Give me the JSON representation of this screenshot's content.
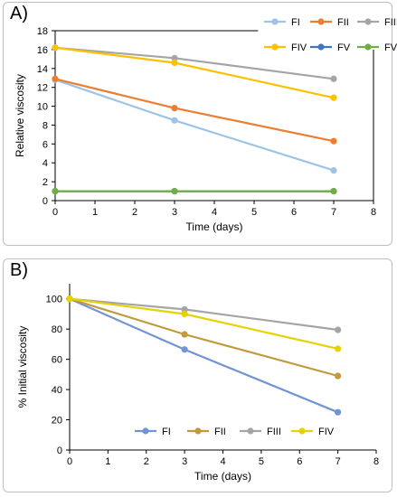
{
  "chart_data": [
    {
      "type": "line",
      "panel_label": "A)",
      "xlabel": "Time (days)",
      "ylabel": "Relative viscosity",
      "xlim": [
        0,
        8
      ],
      "ylim": [
        0,
        18
      ],
      "xticks": [
        0,
        1,
        2,
        3,
        4,
        5,
        6,
        7,
        8
      ],
      "yticks": [
        0,
        2,
        4,
        6,
        8,
        10,
        12,
        14,
        16,
        18
      ],
      "grid": false,
      "legend_position": "top-right",
      "x": [
        0,
        3,
        7
      ],
      "series": [
        {
          "name": "FI",
          "color": "#9dc3e6",
          "values": [
            12.8,
            8.5,
            3.2
          ]
        },
        {
          "name": "FII",
          "color": "#ed7d31",
          "values": [
            12.9,
            9.8,
            6.3
          ]
        },
        {
          "name": "FIII",
          "color": "#a5a5a5",
          "values": [
            16.2,
            15.1,
            12.9
          ]
        },
        {
          "name": "FIV",
          "color": "#ffc000",
          "values": [
            16.2,
            14.6,
            10.9
          ]
        },
        {
          "name": "FV",
          "color": "#4472c4",
          "values": [
            1.0,
            1.0,
            1.0
          ]
        },
        {
          "name": "FVI",
          "color": "#70ad47",
          "values": [
            1.0,
            1.0,
            1.0
          ]
        }
      ]
    },
    {
      "type": "line",
      "panel_label": "B)",
      "xlabel": "Time (days)",
      "ylabel": "% Initial viscosity",
      "xlim": [
        0,
        8
      ],
      "ylim": [
        0,
        110
      ],
      "xticks": [
        0,
        1,
        2,
        3,
        4,
        5,
        6,
        7,
        8
      ],
      "yticks": [
        0,
        20,
        40,
        60,
        80,
        100
      ],
      "grid": false,
      "legend_position": "bottom-inside",
      "x": [
        0,
        3,
        7
      ],
      "series": [
        {
          "name": "FI",
          "color": "#7294d4",
          "values": [
            100,
            66.5,
            25
          ]
        },
        {
          "name": "FII",
          "color": "#c09a3c",
          "values": [
            100,
            76.5,
            49
          ]
        },
        {
          "name": "FIII",
          "color": "#a5a5a5",
          "values": [
            100,
            93,
            79.5
          ]
        },
        {
          "name": "FIV",
          "color": "#e6d200",
          "values": [
            100,
            90,
            67
          ]
        }
      ]
    }
  ]
}
